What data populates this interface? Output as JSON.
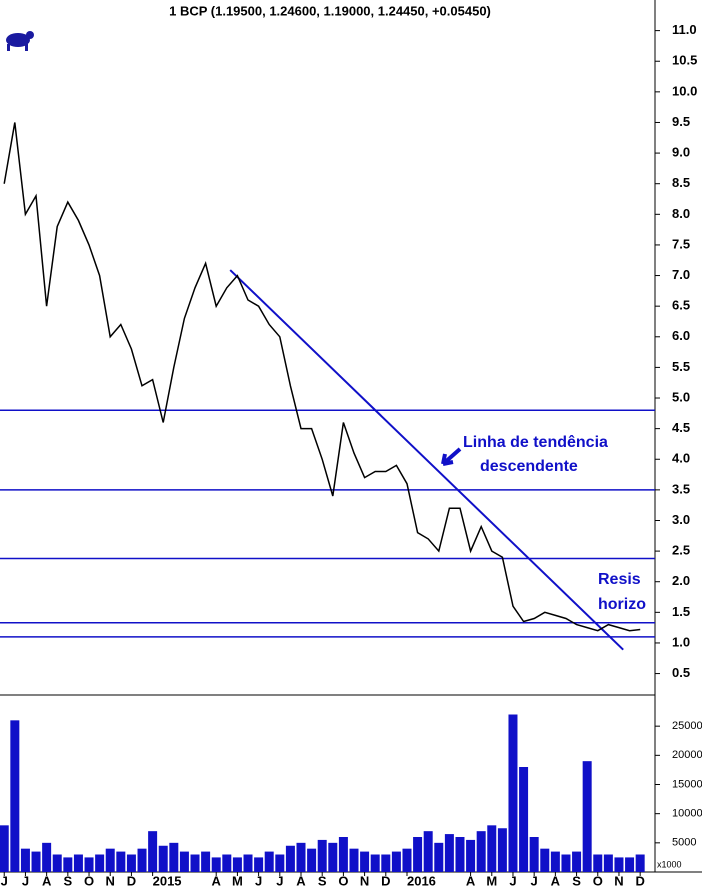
{
  "chart_data": [
    {
      "type": "line",
      "title": "1 BCP (1.19500, 1.24600, 1.19000, 1.24450, +0.05450)",
      "x": [
        0,
        0.5,
        1,
        1.5,
        2,
        2.5,
        3,
        3.5,
        4,
        4.5,
        5,
        5.5,
        6,
        6.5,
        7,
        7.5,
        8,
        8.5,
        9,
        9.5,
        10,
        10.5,
        11,
        11.5,
        12,
        12.5,
        13,
        13.5,
        14,
        14.5,
        15,
        15.5,
        16,
        16.5,
        17,
        17.5,
        18,
        18.5,
        19,
        19.5,
        20,
        20.5,
        21,
        21.5,
        22,
        22.5,
        23,
        23.5,
        24,
        24.5,
        25,
        25.5,
        26,
        26.5,
        27,
        27.5,
        28,
        28.5,
        29,
        29.5,
        30
      ],
      "values": [
        8.5,
        9.5,
        8.0,
        8.3,
        6.5,
        7.8,
        8.2,
        7.9,
        7.5,
        7.0,
        6.0,
        6.2,
        5.8,
        5.2,
        5.3,
        4.6,
        5.5,
        6.3,
        6.8,
        7.2,
        6.5,
        6.8,
        7.0,
        6.6,
        6.5,
        6.2,
        6.0,
        5.2,
        4.5,
        4.5,
        4.0,
        3.4,
        4.6,
        4.1,
        3.7,
        3.8,
        3.8,
        3.9,
        3.6,
        2.8,
        2.7,
        2.5,
        3.2,
        3.2,
        2.5,
        2.9,
        2.5,
        2.4,
        1.6,
        1.35,
        1.4,
        1.5,
        1.45,
        1.4,
        1.3,
        1.25,
        1.2,
        1.3,
        1.25,
        1.2,
        1.22
      ],
      "color": "#000000",
      "line_color": "#1010c8",
      "hlines": [
        4.8,
        3.5,
        2.38,
        1.33,
        1.1
      ],
      "trendline": {
        "x": [
          10.66,
          29.2
        ],
        "y": [
          7.09,
          0.89
        ]
      },
      "annotations": [
        "Linha de tendência",
        "descendente",
        "Resis",
        "horizo"
      ],
      "xlim": [
        -0.2,
        30.7
      ],
      "ylim": [
        0.15,
        11.5
      ],
      "yticks": [
        0.5,
        {
          "value": 1,
          "label": "1.0"
        },
        1.5,
        {
          "value": 2,
          "label": "2.0"
        },
        2.5,
        {
          "value": 3,
          "label": "3.0"
        },
        3.5,
        {
          "value": 4,
          "label": "4.0"
        },
        4.5,
        {
          "value": 5,
          "label": "5.0"
        },
        5.5,
        {
          "value": 6,
          "label": "6.0"
        },
        6.5,
        {
          "value": 7,
          "label": "7.0"
        },
        7.5,
        {
          "value": 8,
          "label": "8.0"
        },
        8.5,
        {
          "value": 9,
          "label": "9.0"
        },
        9.5,
        {
          "value": 10,
          "label": "10.0"
        },
        10.5,
        {
          "value": 11,
          "label": "11.0"
        }
      ]
    },
    {
      "type": "bar",
      "unit_label": "x1000",
      "x": [
        0,
        0.5,
        1,
        1.5,
        2,
        2.5,
        3,
        3.5,
        4,
        4.5,
        5,
        5.5,
        6,
        6.5,
        7,
        7.5,
        8,
        8.5,
        9,
        9.5,
        10,
        10.5,
        11,
        11.5,
        12,
        12.5,
        13,
        13.5,
        14,
        14.5,
        15,
        15.5,
        16,
        16.5,
        17,
        17.5,
        18,
        18.5,
        19,
        19.5,
        20,
        20.5,
        21,
        21.5,
        22,
        22.5,
        23,
        23.5,
        24,
        24.5,
        25,
        25.5,
        26,
        26.5,
        27,
        27.5,
        28,
        28.5,
        29,
        29.5,
        30
      ],
      "values": [
        8000,
        26000,
        4000,
        3500,
        5000,
        3000,
        2500,
        3000,
        2500,
        3000,
        4000,
        3500,
        3000,
        4000,
        7000,
        4500,
        5000,
        3500,
        3000,
        3500,
        2500,
        3000,
        2500,
        3000,
        2500,
        3500,
        3000,
        4500,
        5000,
        4000,
        5500,
        5000,
        6000,
        4000,
        3500,
        3000,
        3000,
        3500,
        4000,
        6000,
        7000,
        5000,
        6500,
        6000,
        5500,
        7000,
        8000,
        7500,
        27000,
        18000,
        6000,
        4000,
        3500,
        3000,
        3500,
        19000,
        3000,
        3000,
        2500,
        2500,
        3000
      ],
      "color": "#1010c8",
      "xlim": [
        -0.2,
        30.7
      ],
      "ylim": [
        0,
        30000
      ],
      "yticks": [
        5000,
        10000,
        15000,
        20000,
        25000
      ],
      "xticks": [
        {
          "value": 0,
          "label": "J"
        },
        {
          "value": 1,
          "label": "J"
        },
        {
          "value": 2,
          "label": "A"
        },
        {
          "value": 3,
          "label": "S"
        },
        {
          "value": 4,
          "label": "O"
        },
        {
          "value": 5,
          "label": "N"
        },
        {
          "value": 6,
          "label": "D"
        },
        {
          "value": 7,
          "label": "2015"
        },
        {
          "value": 10,
          "label": "A"
        },
        {
          "value": 11,
          "label": "M"
        },
        {
          "value": 12,
          "label": "J"
        },
        {
          "value": 13,
          "label": "J"
        },
        {
          "value": 14,
          "label": "A"
        },
        {
          "value": 15,
          "label": "S"
        },
        {
          "value": 16,
          "label": "O"
        },
        {
          "value": 17,
          "label": "N"
        },
        {
          "value": 18,
          "label": "D"
        },
        {
          "value": 19,
          "label": "2016"
        },
        {
          "value": 22,
          "label": "A"
        },
        {
          "value": 23,
          "label": "M"
        },
        {
          "value": 24,
          "label": "J"
        },
        {
          "value": 25,
          "label": "J"
        },
        {
          "value": 26,
          "label": "A"
        },
        {
          "value": 27,
          "label": "S"
        },
        {
          "value": 28,
          "label": "O"
        },
        {
          "value": 29,
          "label": "N"
        },
        {
          "value": 30,
          "label": "D"
        }
      ]
    }
  ]
}
